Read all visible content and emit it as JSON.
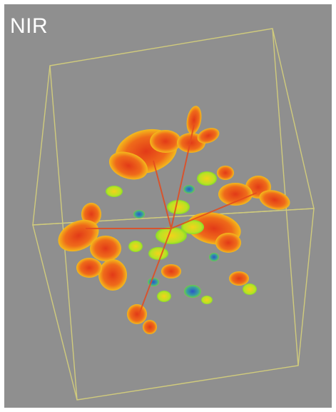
{
  "image": {
    "label": "NIR",
    "palette": {
      "background": "#8f8f8f",
      "border": "#ffffff",
      "box_lines": "#d8d27a",
      "leaf_red": "#e8401a",
      "leaf_orange": "#f07a18",
      "leaf_yellow": "#f4d21a",
      "leaf_green": "#7edb2a",
      "leaf_blue": "#2a55c8"
    }
  }
}
